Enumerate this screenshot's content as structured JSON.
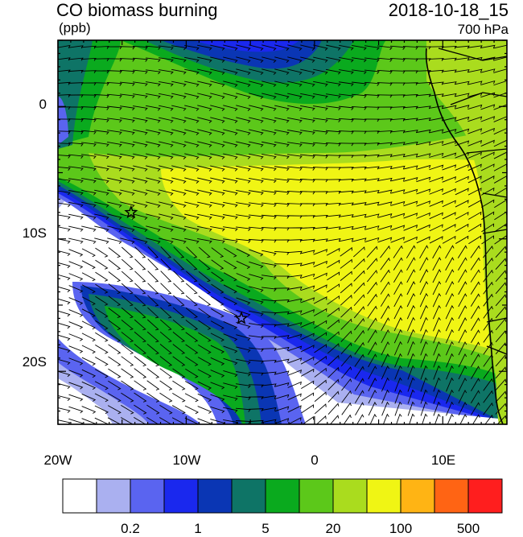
{
  "header": {
    "title": "CO biomass burning",
    "units": "(ppb)",
    "timestamp": "2018-10-18_15",
    "level": "700 hPa"
  },
  "map": {
    "lon_range": [
      -20,
      15
    ],
    "lat_range": [
      -24,
      5
    ],
    "x_ticks": [
      "20W",
      "10W",
      "0",
      "10E"
    ],
    "y_ticks": [
      "0",
      "10S",
      "20S"
    ],
    "stars": [
      {
        "lon": -14.3,
        "lat": -8.0
      },
      {
        "lon": -5.7,
        "lat": -16.0
      }
    ],
    "colors": {
      "white": "#ffffff",
      "lightblue": "#aab0f0",
      "blue1": "#5a64f0",
      "blue2": "#1a28ee",
      "blue3": "#0a36b4",
      "teal": "#0e7466",
      "green": "#0aaa1e",
      "lgreen": "#5cc81a",
      "ygreen": "#aadc1e",
      "yellow": "#f0f514",
      "orange": "#ffb414",
      "dorange": "#ff6414",
      "red": "#ff1e1e"
    }
  },
  "colorbar": {
    "colors": [
      "#ffffff",
      "#aab0f0",
      "#5a64f0",
      "#1a28ee",
      "#0a36b4",
      "#0e7466",
      "#0aaa1e",
      "#5cc81a",
      "#aadc1e",
      "#f0f514",
      "#ffb414",
      "#ff6414",
      "#ff1e1e"
    ],
    "labels": [
      "0.2",
      "1",
      "5",
      "20",
      "100",
      "500"
    ]
  }
}
